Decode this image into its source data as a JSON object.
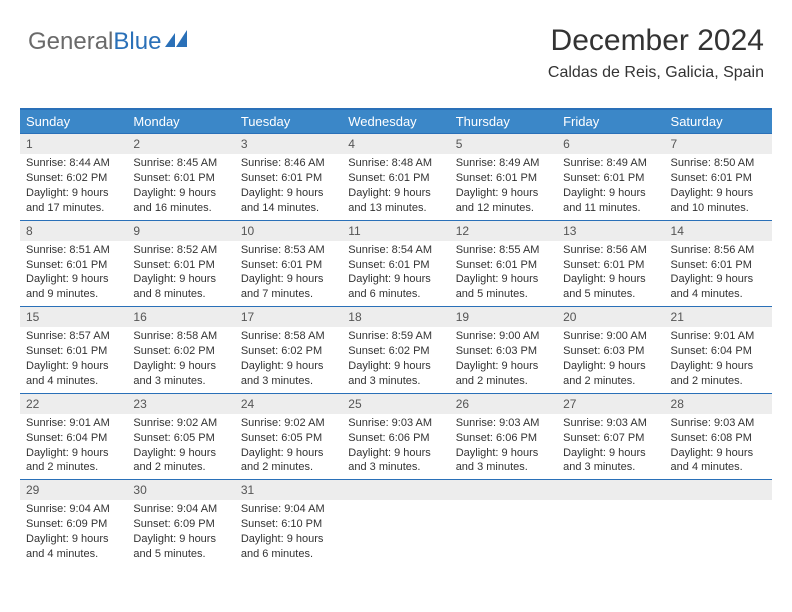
{
  "logo": {
    "part1": "General",
    "part2": "Blue"
  },
  "header": {
    "month_title": "December 2024",
    "location": "Caldas de Reis, Galicia, Spain"
  },
  "colors": {
    "header_bg": "#3b87c8",
    "border": "#2a70b8",
    "daynum_bg": "#ededed",
    "text": "#333333",
    "logo_gray": "#6a6a6a",
    "logo_blue": "#2a70b8",
    "background": "#ffffff"
  },
  "typography": {
    "title_fontsize": 30,
    "location_fontsize": 16,
    "dayheader_fontsize": 13,
    "body_fontsize": 11
  },
  "calendar": {
    "day_names": [
      "Sunday",
      "Monday",
      "Tuesday",
      "Wednesday",
      "Thursday",
      "Friday",
      "Saturday"
    ],
    "weeks": [
      [
        {
          "num": "1",
          "sunrise": "Sunrise: 8:44 AM",
          "sunset": "Sunset: 6:02 PM",
          "day1": "Daylight: 9 hours",
          "day2": "and 17 minutes."
        },
        {
          "num": "2",
          "sunrise": "Sunrise: 8:45 AM",
          "sunset": "Sunset: 6:01 PM",
          "day1": "Daylight: 9 hours",
          "day2": "and 16 minutes."
        },
        {
          "num": "3",
          "sunrise": "Sunrise: 8:46 AM",
          "sunset": "Sunset: 6:01 PM",
          "day1": "Daylight: 9 hours",
          "day2": "and 14 minutes."
        },
        {
          "num": "4",
          "sunrise": "Sunrise: 8:48 AM",
          "sunset": "Sunset: 6:01 PM",
          "day1": "Daylight: 9 hours",
          "day2": "and 13 minutes."
        },
        {
          "num": "5",
          "sunrise": "Sunrise: 8:49 AM",
          "sunset": "Sunset: 6:01 PM",
          "day1": "Daylight: 9 hours",
          "day2": "and 12 minutes."
        },
        {
          "num": "6",
          "sunrise": "Sunrise: 8:49 AM",
          "sunset": "Sunset: 6:01 PM",
          "day1": "Daylight: 9 hours",
          "day2": "and 11 minutes."
        },
        {
          "num": "7",
          "sunrise": "Sunrise: 8:50 AM",
          "sunset": "Sunset: 6:01 PM",
          "day1": "Daylight: 9 hours",
          "day2": "and 10 minutes."
        }
      ],
      [
        {
          "num": "8",
          "sunrise": "Sunrise: 8:51 AM",
          "sunset": "Sunset: 6:01 PM",
          "day1": "Daylight: 9 hours",
          "day2": "and 9 minutes."
        },
        {
          "num": "9",
          "sunrise": "Sunrise: 8:52 AM",
          "sunset": "Sunset: 6:01 PM",
          "day1": "Daylight: 9 hours",
          "day2": "and 8 minutes."
        },
        {
          "num": "10",
          "sunrise": "Sunrise: 8:53 AM",
          "sunset": "Sunset: 6:01 PM",
          "day1": "Daylight: 9 hours",
          "day2": "and 7 minutes."
        },
        {
          "num": "11",
          "sunrise": "Sunrise: 8:54 AM",
          "sunset": "Sunset: 6:01 PM",
          "day1": "Daylight: 9 hours",
          "day2": "and 6 minutes."
        },
        {
          "num": "12",
          "sunrise": "Sunrise: 8:55 AM",
          "sunset": "Sunset: 6:01 PM",
          "day1": "Daylight: 9 hours",
          "day2": "and 5 minutes."
        },
        {
          "num": "13",
          "sunrise": "Sunrise: 8:56 AM",
          "sunset": "Sunset: 6:01 PM",
          "day1": "Daylight: 9 hours",
          "day2": "and 5 minutes."
        },
        {
          "num": "14",
          "sunrise": "Sunrise: 8:56 AM",
          "sunset": "Sunset: 6:01 PM",
          "day1": "Daylight: 9 hours",
          "day2": "and 4 minutes."
        }
      ],
      [
        {
          "num": "15",
          "sunrise": "Sunrise: 8:57 AM",
          "sunset": "Sunset: 6:01 PM",
          "day1": "Daylight: 9 hours",
          "day2": "and 4 minutes."
        },
        {
          "num": "16",
          "sunrise": "Sunrise: 8:58 AM",
          "sunset": "Sunset: 6:02 PM",
          "day1": "Daylight: 9 hours",
          "day2": "and 3 minutes."
        },
        {
          "num": "17",
          "sunrise": "Sunrise: 8:58 AM",
          "sunset": "Sunset: 6:02 PM",
          "day1": "Daylight: 9 hours",
          "day2": "and 3 minutes."
        },
        {
          "num": "18",
          "sunrise": "Sunrise: 8:59 AM",
          "sunset": "Sunset: 6:02 PM",
          "day1": "Daylight: 9 hours",
          "day2": "and 3 minutes."
        },
        {
          "num": "19",
          "sunrise": "Sunrise: 9:00 AM",
          "sunset": "Sunset: 6:03 PM",
          "day1": "Daylight: 9 hours",
          "day2": "and 2 minutes."
        },
        {
          "num": "20",
          "sunrise": "Sunrise: 9:00 AM",
          "sunset": "Sunset: 6:03 PM",
          "day1": "Daylight: 9 hours",
          "day2": "and 2 minutes."
        },
        {
          "num": "21",
          "sunrise": "Sunrise: 9:01 AM",
          "sunset": "Sunset: 6:04 PM",
          "day1": "Daylight: 9 hours",
          "day2": "and 2 minutes."
        }
      ],
      [
        {
          "num": "22",
          "sunrise": "Sunrise: 9:01 AM",
          "sunset": "Sunset: 6:04 PM",
          "day1": "Daylight: 9 hours",
          "day2": "and 2 minutes."
        },
        {
          "num": "23",
          "sunrise": "Sunrise: 9:02 AM",
          "sunset": "Sunset: 6:05 PM",
          "day1": "Daylight: 9 hours",
          "day2": "and 2 minutes."
        },
        {
          "num": "24",
          "sunrise": "Sunrise: 9:02 AM",
          "sunset": "Sunset: 6:05 PM",
          "day1": "Daylight: 9 hours",
          "day2": "and 2 minutes."
        },
        {
          "num": "25",
          "sunrise": "Sunrise: 9:03 AM",
          "sunset": "Sunset: 6:06 PM",
          "day1": "Daylight: 9 hours",
          "day2": "and 3 minutes."
        },
        {
          "num": "26",
          "sunrise": "Sunrise: 9:03 AM",
          "sunset": "Sunset: 6:06 PM",
          "day1": "Daylight: 9 hours",
          "day2": "and 3 minutes."
        },
        {
          "num": "27",
          "sunrise": "Sunrise: 9:03 AM",
          "sunset": "Sunset: 6:07 PM",
          "day1": "Daylight: 9 hours",
          "day2": "and 3 minutes."
        },
        {
          "num": "28",
          "sunrise": "Sunrise: 9:03 AM",
          "sunset": "Sunset: 6:08 PM",
          "day1": "Daylight: 9 hours",
          "day2": "and 4 minutes."
        }
      ],
      [
        {
          "num": "29",
          "sunrise": "Sunrise: 9:04 AM",
          "sunset": "Sunset: 6:09 PM",
          "day1": "Daylight: 9 hours",
          "day2": "and 4 minutes."
        },
        {
          "num": "30",
          "sunrise": "Sunrise: 9:04 AM",
          "sunset": "Sunset: 6:09 PM",
          "day1": "Daylight: 9 hours",
          "day2": "and 5 minutes."
        },
        {
          "num": "31",
          "sunrise": "Sunrise: 9:04 AM",
          "sunset": "Sunset: 6:10 PM",
          "day1": "Daylight: 9 hours",
          "day2": "and 6 minutes."
        },
        {
          "empty": true
        },
        {
          "empty": true
        },
        {
          "empty": true
        },
        {
          "empty": true
        }
      ]
    ]
  }
}
